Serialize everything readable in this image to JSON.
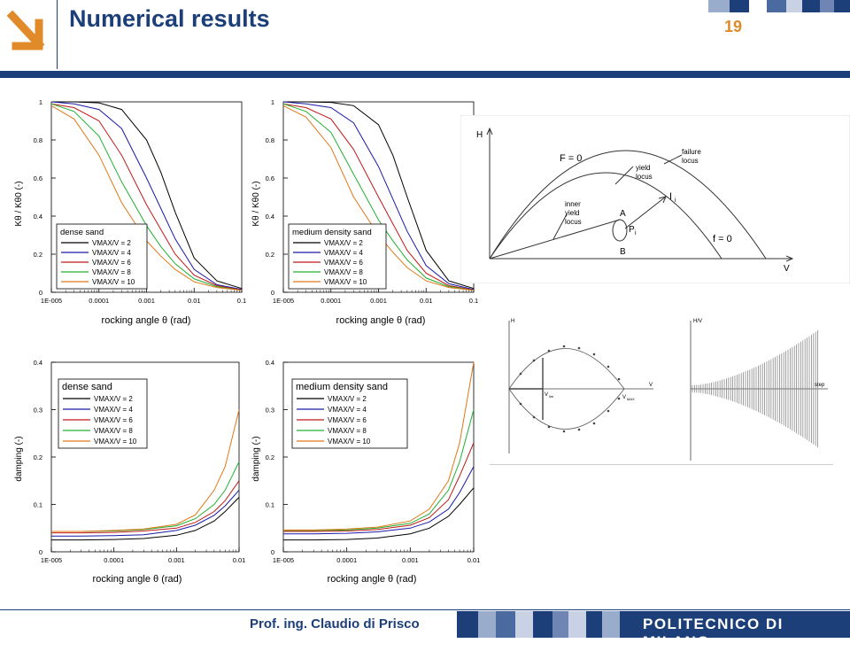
{
  "header": {
    "title": "Numerical results",
    "page_number": "19"
  },
  "footer": {
    "author": "Prof. ing. Claudio di Prisco",
    "institution": "POLITECNICO DI MILANO"
  },
  "colors": {
    "brand_blue": "#1c3f7a",
    "page_number_orange": "#e08a2a",
    "series": [
      "#000000",
      "#1a1aa8",
      "#c01818",
      "#20b030",
      "#e07818"
    ]
  },
  "chart_data": [
    {
      "type": "line",
      "xscale": "log",
      "xlim": [
        1e-05,
        0.1
      ],
      "ylim": [
        0,
        1
      ],
      "xticks": [
        "1E-005",
        "0.0001",
        "0.001",
        "0.01",
        "0.1"
      ],
      "yticks": [
        "0",
        "0.2",
        "0.4",
        "0.6",
        "0.8",
        "1"
      ],
      "xlabel": "rocking angle θ (rad)",
      "ylabel": "Kθ / Kθ0 (-)",
      "legend_title": "dense sand",
      "legend_position": "bottom-left",
      "series": [
        {
          "name": "VMAX/V = 2",
          "x": [
            1e-05,
            3e-05,
            0.0001,
            0.0003,
            0.001,
            0.002,
            0.004,
            0.01,
            0.03,
            0.1
          ],
          "values": [
            1.0,
            1.0,
            0.995,
            0.96,
            0.8,
            0.63,
            0.42,
            0.18,
            0.06,
            0.02
          ]
        },
        {
          "name": "VMAX/V = 4",
          "x": [
            1e-05,
            3e-05,
            0.0001,
            0.0003,
            0.001,
            0.002,
            0.004,
            0.01,
            0.03,
            0.1
          ],
          "values": [
            1.0,
            0.99,
            0.96,
            0.86,
            0.6,
            0.44,
            0.28,
            0.12,
            0.04,
            0.015
          ]
        },
        {
          "name": "VMAX/V = 6",
          "x": [
            1e-05,
            3e-05,
            0.0001,
            0.0003,
            0.001,
            0.002,
            0.004,
            0.01,
            0.03,
            0.1
          ],
          "values": [
            0.99,
            0.97,
            0.9,
            0.72,
            0.46,
            0.33,
            0.2,
            0.09,
            0.035,
            0.012
          ]
        },
        {
          "name": "VMAX/V = 8",
          "x": [
            1e-05,
            3e-05,
            0.0001,
            0.0003,
            0.001,
            0.002,
            0.004,
            0.01,
            0.03,
            0.1
          ],
          "values": [
            0.99,
            0.95,
            0.82,
            0.58,
            0.35,
            0.24,
            0.15,
            0.07,
            0.03,
            0.01
          ]
        },
        {
          "name": "VMAX/V = 10",
          "x": [
            1e-05,
            3e-05,
            0.0001,
            0.0003,
            0.001,
            0.002,
            0.004,
            0.01,
            0.03,
            0.1
          ],
          "values": [
            0.98,
            0.91,
            0.72,
            0.47,
            0.27,
            0.19,
            0.12,
            0.055,
            0.025,
            0.01
          ]
        }
      ]
    },
    {
      "type": "line",
      "xscale": "log",
      "xlim": [
        1e-05,
        0.1
      ],
      "ylim": [
        0,
        1
      ],
      "xticks": [
        "1E-005",
        "0.0001",
        "0.001",
        "0.01",
        "0.1"
      ],
      "yticks": [
        "0",
        "0.2",
        "0.4",
        "0.6",
        "0.8",
        "1"
      ],
      "xlabel": "rocking angle θ (rad)",
      "ylabel": "Kθ / Kθ0 (-)",
      "legend_title": "medium density sand",
      "legend_position": "bottom-left",
      "series": [
        {
          "name": "VMAX/V = 2",
          "x": [
            1e-05,
            3e-05,
            0.0001,
            0.0003,
            0.001,
            0.002,
            0.004,
            0.01,
            0.03,
            0.1
          ],
          "values": [
            1.0,
            1.0,
            0.997,
            0.98,
            0.88,
            0.72,
            0.5,
            0.22,
            0.06,
            0.02
          ]
        },
        {
          "name": "VMAX/V = 4",
          "x": [
            1e-05,
            3e-05,
            0.0001,
            0.0003,
            0.001,
            0.002,
            0.004,
            0.01,
            0.03,
            0.1
          ],
          "values": [
            1.0,
            0.99,
            0.97,
            0.89,
            0.66,
            0.49,
            0.32,
            0.14,
            0.045,
            0.015
          ]
        },
        {
          "name": "VMAX/V = 6",
          "x": [
            1e-05,
            3e-05,
            0.0001,
            0.0003,
            0.001,
            0.002,
            0.004,
            0.01,
            0.03,
            0.1
          ],
          "values": [
            0.99,
            0.97,
            0.91,
            0.75,
            0.5,
            0.36,
            0.22,
            0.1,
            0.035,
            0.012
          ]
        },
        {
          "name": "VMAX/V = 8",
          "x": [
            1e-05,
            3e-05,
            0.0001,
            0.0003,
            0.001,
            0.002,
            0.004,
            0.01,
            0.03,
            0.1
          ],
          "values": [
            0.99,
            0.95,
            0.84,
            0.62,
            0.38,
            0.27,
            0.17,
            0.075,
            0.03,
            0.01
          ]
        },
        {
          "name": "VMAX/V = 10",
          "x": [
            1e-05,
            3e-05,
            0.0001,
            0.0003,
            0.001,
            0.002,
            0.004,
            0.01,
            0.03,
            0.1
          ],
          "values": [
            0.98,
            0.92,
            0.76,
            0.5,
            0.3,
            0.21,
            0.13,
            0.06,
            0.025,
            0.01
          ]
        }
      ]
    },
    {
      "type": "line",
      "xscale": "log",
      "xlim": [
        1e-05,
        0.01
      ],
      "ylim": [
        0,
        0.4
      ],
      "xticks": [
        "1E-005",
        "0.0001",
        "0.001",
        "0.01"
      ],
      "yticks": [
        "0",
        "0.1",
        "0.2",
        "0.3",
        "0.4"
      ],
      "xlabel": "rocking angle θ (rad)",
      "ylabel": "damping (-)",
      "legend_title": "dense sand",
      "legend_position": "top-left",
      "series": [
        {
          "name": "VMAX/V = 2",
          "x": [
            1e-05,
            3e-05,
            0.0001,
            0.0003,
            0.001,
            0.002,
            0.004,
            0.006,
            0.01
          ],
          "values": [
            0.025,
            0.025,
            0.026,
            0.028,
            0.035,
            0.045,
            0.065,
            0.085,
            0.115
          ]
        },
        {
          "name": "VMAX/V = 4",
          "x": [
            1e-05,
            3e-05,
            0.0001,
            0.0003,
            0.001,
            0.002,
            0.004,
            0.006,
            0.01
          ],
          "values": [
            0.033,
            0.033,
            0.034,
            0.036,
            0.045,
            0.056,
            0.077,
            0.097,
            0.13
          ]
        },
        {
          "name": "VMAX/V = 6",
          "x": [
            1e-05,
            3e-05,
            0.0001,
            0.0003,
            0.001,
            0.002,
            0.004,
            0.006,
            0.01
          ],
          "values": [
            0.04,
            0.04,
            0.041,
            0.044,
            0.05,
            0.062,
            0.085,
            0.108,
            0.15
          ]
        },
        {
          "name": "VMAX/V = 8",
          "x": [
            1e-05,
            3e-05,
            0.0001,
            0.0003,
            0.001,
            0.002,
            0.004,
            0.006,
            0.01
          ],
          "values": [
            0.043,
            0.043,
            0.044,
            0.047,
            0.055,
            0.07,
            0.1,
            0.13,
            0.19
          ]
        },
        {
          "name": "VMAX/V = 10",
          "x": [
            1e-05,
            3e-05,
            0.0001,
            0.0003,
            0.001,
            0.002,
            0.004,
            0.006,
            0.01
          ],
          "values": [
            0.043,
            0.043,
            0.045,
            0.048,
            0.058,
            0.078,
            0.13,
            0.18,
            0.3
          ]
        }
      ]
    },
    {
      "type": "line",
      "xscale": "log",
      "xlim": [
        1e-05,
        0.01
      ],
      "ylim": [
        0,
        0.4
      ],
      "xticks": [
        "1E-005",
        "0.0001",
        "0.001",
        "0.01"
      ],
      "yticks": [
        "0",
        "0.1",
        "0.2",
        "0.3",
        "0.4"
      ],
      "xlabel": "rocking angle θ (rad)",
      "ylabel": "damping (-)",
      "legend_title": "medium density sand",
      "legend_position": "top-left",
      "series": [
        {
          "name": "VMAX/V = 2",
          "x": [
            1e-05,
            3e-05,
            0.0001,
            0.0003,
            0.001,
            0.002,
            0.004,
            0.006,
            0.01
          ],
          "values": [
            0.025,
            0.025,
            0.026,
            0.029,
            0.038,
            0.05,
            0.075,
            0.1,
            0.135
          ]
        },
        {
          "name": "VMAX/V = 4",
          "x": [
            1e-05,
            3e-05,
            0.0001,
            0.0003,
            0.001,
            0.002,
            0.004,
            0.006,
            0.01
          ],
          "values": [
            0.038,
            0.038,
            0.039,
            0.042,
            0.05,
            0.063,
            0.09,
            0.125,
            0.18
          ]
        },
        {
          "name": "VMAX/V = 6",
          "x": [
            1e-05,
            3e-05,
            0.0001,
            0.0003,
            0.001,
            0.002,
            0.004,
            0.006,
            0.01
          ],
          "values": [
            0.043,
            0.043,
            0.044,
            0.047,
            0.056,
            0.072,
            0.11,
            0.16,
            0.23
          ]
        },
        {
          "name": "VMAX/V = 8",
          "x": [
            1e-05,
            3e-05,
            0.0001,
            0.0003,
            0.001,
            0.002,
            0.004,
            0.006,
            0.01
          ],
          "values": [
            0.045,
            0.045,
            0.046,
            0.05,
            0.06,
            0.08,
            0.13,
            0.19,
            0.3
          ]
        },
        {
          "name": "VMAX/V = 10",
          "x": [
            1e-05,
            3e-05,
            0.0001,
            0.0003,
            0.001,
            0.002,
            0.004,
            0.006,
            0.01
          ],
          "values": [
            0.046,
            0.046,
            0.048,
            0.052,
            0.065,
            0.09,
            0.15,
            0.23,
            0.4
          ]
        }
      ]
    }
  ],
  "diagram_locus": {
    "axis_h": "H",
    "axis_v": "V",
    "label_f0_top": "F = 0",
    "label_failure": "failure",
    "label_failure_2": "locus",
    "label_yield": "yield",
    "label_yield_2": "locus",
    "label_inner": "inner",
    "label_inner_2": "yield",
    "label_inner_3": "locus",
    "label_a": "A",
    "label_b": "B",
    "label_p": "P",
    "label_p_sub": "i",
    "label_i": "I",
    "label_i_sub": "i",
    "label_f0_bottom": "f = 0"
  },
  "diagram_path": {
    "axis_h": "H",
    "axis_v": "V",
    "label_vlim": "V",
    "label_vlim_sub": "lim",
    "label_vmax": "V",
    "label_vmax_sub": "MAX"
  },
  "diagram_signal": {
    "axis_hv": "H/V",
    "axis_step": "step"
  }
}
